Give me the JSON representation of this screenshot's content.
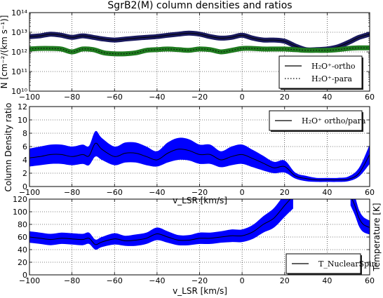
{
  "chart_data": [
    {
      "type": "line",
      "title": "SgrB2(M) column densities and ratios",
      "ylabel": "N [cm⁻²/(km s⁻¹)]",
      "yscale": "log",
      "xlim": [
        -100,
        60
      ],
      "ylim": [
        10000000000.0,
        100000000000000.0
      ],
      "x_ticks": [
        "−100",
        "−80",
        "−60",
        "−40",
        "−20",
        "0",
        "20",
        "40",
        "60"
      ],
      "y_ticks": [
        "10¹⁰",
        "10¹¹",
        "10¹²",
        "10¹³",
        "10¹⁴"
      ],
      "grid": true,
      "legend_position": "lower-right",
      "series": [
        {
          "name": "H₂O⁺-ortho",
          "style": "solid",
          "color": "#1a1a5e",
          "x": [
            -100,
            -95,
            -90,
            -85,
            -80,
            -75,
            -70,
            -65,
            -60,
            -55,
            -50,
            -45,
            -40,
            -35,
            -30,
            -25,
            -20,
            -15,
            -10,
            -5,
            0,
            5,
            10,
            15,
            20,
            25,
            30,
            35,
            40,
            45,
            50,
            55,
            60
          ],
          "y": [
            6000000000000.0,
            6600000000000.0,
            8000000000000.0,
            7000000000000.0,
            5500000000000.0,
            6600000000000.0,
            5500000000000.0,
            4500000000000.0,
            4000000000000.0,
            4500000000000.0,
            5000000000000.0,
            5500000000000.0,
            6000000000000.0,
            7000000000000.0,
            8000000000000.0,
            9000000000000.0,
            8000000000000.0,
            6000000000000.0,
            5000000000000.0,
            5500000000000.0,
            7000000000000.0,
            5000000000000.0,
            4000000000000.0,
            4000000000000.0,
            3500000000000.0,
            2000000000000.0,
            1300000000000.0,
            1300000000000.0,
            1400000000000.0,
            1800000000000.0,
            3000000000000.0,
            5500000000000.0,
            8000000000000.0
          ]
        },
        {
          "name": "H₂O⁺-para",
          "style": "dotted",
          "color": "#1f7a1f",
          "x": [
            -100,
            -95,
            -90,
            -85,
            -80,
            -75,
            -70,
            -65,
            -60,
            -55,
            -50,
            -45,
            -40,
            -35,
            -30,
            -25,
            -20,
            -15,
            -10,
            -5,
            0,
            5,
            10,
            15,
            20,
            25,
            30,
            35,
            40,
            45,
            50,
            55,
            60
          ],
          "y": [
            1400000000000.0,
            1500000000000.0,
            1500000000000.0,
            1400000000000.0,
            1000000000000.0,
            1400000000000.0,
            1300000000000.0,
            900000000000.0,
            800000000000.0,
            800000000000.0,
            900000000000.0,
            1200000000000.0,
            1300000000000.0,
            1400000000000.0,
            1300000000000.0,
            1200000000000.0,
            1400000000000.0,
            1300000000000.0,
            1000000000000.0,
            1200000000000.0,
            1500000000000.0,
            1500000000000.0,
            1400000000000.0,
            1400000000000.0,
            1400000000000.0,
            1300000000000.0,
            1200000000000.0,
            1200000000000.0,
            1200000000000.0,
            1300000000000.0,
            1500000000000.0,
            1600000000000.0,
            1600000000000.0
          ]
        }
      ]
    },
    {
      "type": "area",
      "ylabel": "Column Density ratio",
      "xlim": [
        -100,
        60
      ],
      "ylim": [
        0,
        12
      ],
      "x_ticks": [
        "−100",
        "−80",
        "−60",
        "−40",
        "−20",
        "0",
        "20",
        "40",
        "60"
      ],
      "y_ticks": [
        "0",
        "2",
        "4",
        "6",
        "8",
        "10",
        "12"
      ],
      "grid": true,
      "legend_position": "top-right",
      "series": [
        {
          "name": "H₂O⁺ ortho/para",
          "line_color": "#000000",
          "band_color": "#0000ff",
          "x": [
            -100,
            -95,
            -90,
            -85,
            -80,
            -75,
            -72,
            -69,
            -66,
            -60,
            -55,
            -50,
            -45,
            -40,
            -35,
            -30,
            -25,
            -20,
            -15,
            -10,
            -5,
            0,
            5,
            10,
            15,
            20,
            25,
            30,
            35,
            40,
            45,
            50,
            55,
            60
          ],
          "y": [
            4.3,
            4.5,
            4.8,
            4.8,
            4.5,
            4.8,
            4.6,
            6.5,
            5.6,
            4.5,
            5.0,
            5.0,
            4.5,
            4.0,
            5.0,
            5.6,
            5.4,
            4.8,
            4.8,
            4.0,
            4.5,
            4.8,
            4.2,
            3.5,
            2.8,
            3.0,
            1.6,
            1.2,
            1.0,
            1.0,
            1.0,
            1.1,
            2.0,
            4.8
          ],
          "y_low": [
            3.0,
            3.2,
            3.4,
            3.4,
            3.2,
            3.4,
            3.2,
            4.5,
            4.0,
            3.2,
            3.6,
            3.6,
            3.2,
            3.0,
            3.6,
            4.0,
            3.9,
            3.4,
            3.4,
            2.9,
            3.2,
            3.4,
            2.9,
            2.4,
            2.0,
            2.1,
            1.2,
            0.8,
            0.7,
            0.7,
            0.7,
            0.8,
            1.5,
            3.4
          ],
          "y_high": [
            5.7,
            6.0,
            6.3,
            6.3,
            6.0,
            6.3,
            6.1,
            8.3,
            7.3,
            6.0,
            6.6,
            6.6,
            6.0,
            5.3,
            6.6,
            7.3,
            7.1,
            6.3,
            6.3,
            5.3,
            6.0,
            6.3,
            5.5,
            4.6,
            3.7,
            3.9,
            2.1,
            1.6,
            1.3,
            1.3,
            1.3,
            1.5,
            2.8,
            6.3
          ]
        }
      ]
    },
    {
      "type": "area",
      "ylabel": "Temperature [K]",
      "xlabel": "v_LSR [km/s]",
      "xlim": [
        -100,
        60
      ],
      "ylim": [
        0,
        120
      ],
      "x_ticks": [
        "−100",
        "−80",
        "−60",
        "−40",
        "−20",
        "0",
        "20",
        "40",
        "60"
      ],
      "y_ticks": [
        "0",
        "20",
        "40",
        "60",
        "80",
        "100",
        "120"
      ],
      "grid": true,
      "legend_position": "lower-right",
      "series": [
        {
          "name": "T_NuclearSpin",
          "line_color": "#000000",
          "band_color": "#0000ff",
          "segments": [
            {
              "x": [
                -100,
                -95,
                -90,
                -85,
                -80,
                -75,
                -72,
                -69,
                -66,
                -60,
                -55,
                -50,
                -45,
                -40,
                -35,
                -30,
                -25,
                -20,
                -15,
                -10,
                -5,
                0,
                5,
                10,
                15,
                20,
                24
              ],
              "y": [
                60,
                58,
                56,
                58,
                57,
                56,
                58,
                48,
                52,
                57,
                54,
                55,
                58,
                65,
                60,
                55,
                55,
                58,
                58,
                60,
                62,
                62,
                68,
                80,
                90,
                110,
                125
              ],
              "y_low": [
                51,
                49,
                47,
                49,
                48,
                47,
                49,
                40,
                44,
                48,
                46,
                46,
                49,
                55,
                51,
                47,
                47,
                49,
                49,
                51,
                52,
                52,
                57,
                67,
                75,
                92,
                105
              ],
              "y_high": [
                69,
                67,
                65,
                67,
                66,
                65,
                67,
                56,
                60,
                66,
                62,
                64,
                67,
                75,
                69,
                63,
                63,
                67,
                67,
                69,
                72,
                72,
                79,
                93,
                106,
                128,
                145
              ]
            },
            {
              "x": [
                51,
                53,
                55,
                57,
                60
              ],
              "y": [
                125,
                110,
                90,
                80,
                75
              ],
              "y_low": [
                110,
                95,
                77,
                68,
                64
              ],
              "y_high": [
                140,
                125,
                103,
                92,
                86
              ]
            }
          ]
        }
      ]
    }
  ],
  "axis_label_bottom": "v_LSR [km/s]",
  "axis_label_middle": "v_LSR [km/s]"
}
